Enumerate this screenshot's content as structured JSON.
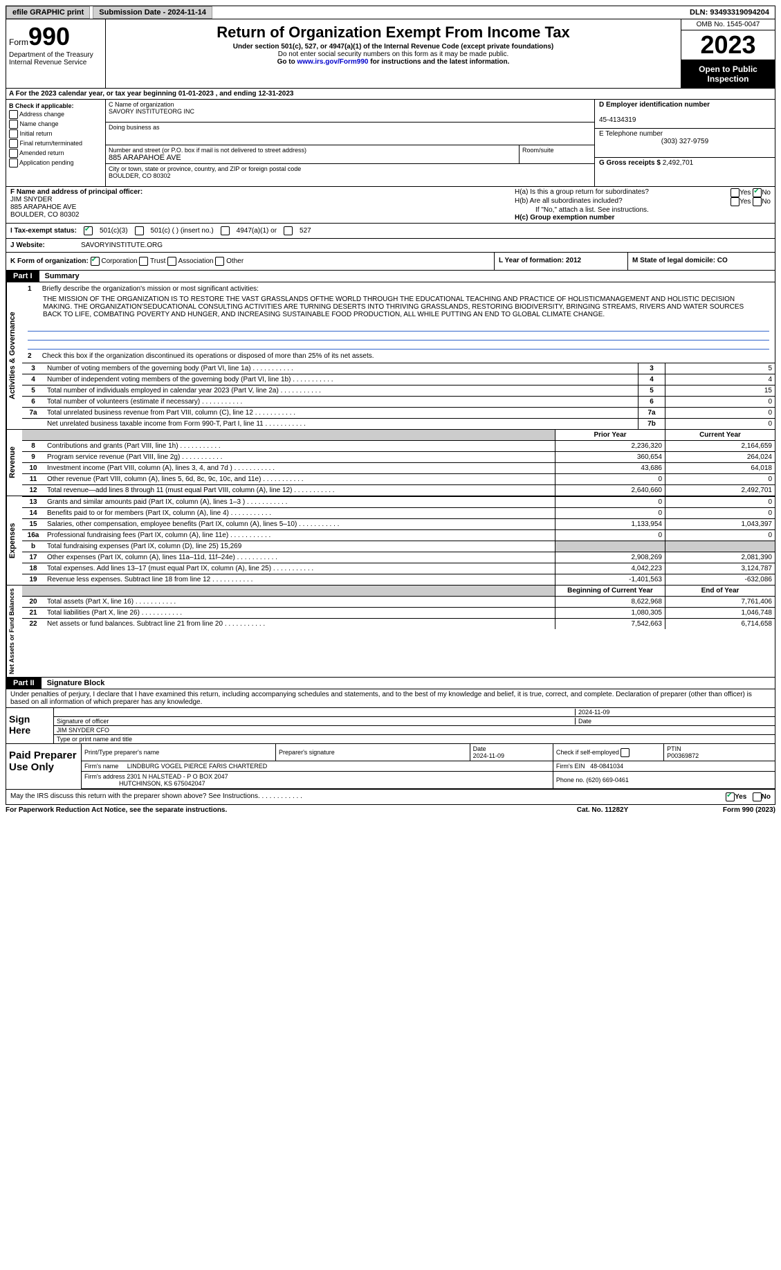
{
  "topbar": {
    "efile": "efile GRAPHIC print",
    "submission": "Submission Date - 2024-11-14",
    "dln": "DLN: 93493319094204"
  },
  "header": {
    "form_label": "Form",
    "form_num": "990",
    "dept": "Department of the Treasury",
    "irs": "Internal Revenue Service",
    "title": "Return of Organization Exempt From Income Tax",
    "sub1": "Under section 501(c), 527, or 4947(a)(1) of the Internal Revenue Code (except private foundations)",
    "sub2": "Do not enter social security numbers on this form as it may be made public.",
    "sub3_pre": "Go to ",
    "sub3_link": "www.irs.gov/Form990",
    "sub3_post": " for instructions and the latest information.",
    "omb": "OMB No. 1545-0047",
    "year": "2023",
    "open": "Open to Public Inspection"
  },
  "rowA": "A   For the 2023 calendar year, or tax year beginning 01-01-2023    , and ending 12-31-2023",
  "colB": {
    "title": "B Check if applicable:",
    "opts": [
      "Address change",
      "Name change",
      "Initial return",
      "Final return/terminated",
      "Amended return",
      "Application pending"
    ]
  },
  "colC": {
    "name_lbl": "C Name of organization",
    "name": "SAVORY INSTITUTEORG INC",
    "dba_lbl": "Doing business as",
    "addr_lbl": "Number and street (or P.O. box if mail is not delivered to street address)",
    "addr": "885 ARAPAHOE AVE",
    "room_lbl": "Room/suite",
    "city_lbl": "City or town, state or province, country, and ZIP or foreign postal code",
    "city": "BOULDER, CO  80302"
  },
  "colDE": {
    "d_lbl": "D Employer identification number",
    "d_val": "45-4134319",
    "e_lbl": "E Telephone number",
    "e_val": "(303) 327-9759",
    "g_lbl": "G Gross receipts $",
    "g_val": "2,492,701"
  },
  "rowF": {
    "lbl": "F  Name and address of principal officer:",
    "name": "JIM SNYDER",
    "addr1": "885 ARAPAHOE AVE",
    "addr2": "BOULDER, CO  80302"
  },
  "rowH": {
    "ha": "H(a)  Is this a group return for subordinates?",
    "hb": "H(b)  Are all subordinates included?",
    "hb2": "If \"No,\" attach a list. See instructions.",
    "hc": "H(c)  Group exemption number",
    "yes": "Yes",
    "no": "No"
  },
  "rowI": {
    "lbl": "I    Tax-exempt status:",
    "o1": "501(c)(3)",
    "o2": "501(c) (  ) (insert no.)",
    "o3": "4947(a)(1) or",
    "o4": "527"
  },
  "rowJ": {
    "lbl": "J    Website:",
    "val": "SAVORYINSTITUTE.ORG"
  },
  "rowK": {
    "lbl": "K Form of organization:",
    "o1": "Corporation",
    "o2": "Trust",
    "o3": "Association",
    "o4": "Other",
    "l": "L Year of formation: 2012",
    "m": "M State of legal domicile: CO"
  },
  "part1": {
    "tab": "Part I",
    "title": "Summary",
    "q1": "Briefly describe the organization's mission or most significant activities:",
    "mission": "THE MISSION OF THE ORGANIZATION IS TO RESTORE THE VAST GRASSLANDS OFTHE WORLD THROUGH THE EDUCATIONAL TEACHING AND PRACTICE OF HOLISTICMANAGEMENT AND HOLISTIC DECISION MAKING. THE ORGANIZATION'SEDUCATIONAL CONSULTING ACTIVITIES ARE TURNING DESERTS INTO THRIVING GRASSLANDS, RESTORING BIODIVERSITY, BRINGING STREAMS, RIVERS AND WATER SOURCES BACK TO LIFE, COMBATING POVERTY AND HUNGER, AND INCREASING SUSTAINABLE FOOD PRODUCTION, ALL WHILE PUTTING AN END TO GLOBAL CLIMATE CHANGE.",
    "q2": "Check this box       if the organization discontinued its operations or disposed of more than 25% of its net assets.",
    "lines_act": [
      {
        "n": "3",
        "d": "Number of voting members of the governing body (Part VI, line 1a)",
        "b": "3",
        "v": "5"
      },
      {
        "n": "4",
        "d": "Number of independent voting members of the governing body (Part VI, line 1b)",
        "b": "4",
        "v": "4"
      },
      {
        "n": "5",
        "d": "Total number of individuals employed in calendar year 2023 (Part V, line 2a)",
        "b": "5",
        "v": "15"
      },
      {
        "n": "6",
        "d": "Total number of volunteers (estimate if necessary)",
        "b": "6",
        "v": "0"
      },
      {
        "n": "7a",
        "d": "Total unrelated business revenue from Part VIII, column (C), line 12",
        "b": "7a",
        "v": "0"
      },
      {
        "n": "",
        "d": "Net unrelated business taxable income from Form 990-T, Part I, line 11",
        "b": "7b",
        "v": "0"
      }
    ],
    "prior": "Prior Year",
    "current": "Current Year",
    "rev": [
      {
        "n": "8",
        "d": "Contributions and grants (Part VIII, line 1h)",
        "p": "2,236,320",
        "c": "2,164,659"
      },
      {
        "n": "9",
        "d": "Program service revenue (Part VIII, line 2g)",
        "p": "360,654",
        "c": "264,024"
      },
      {
        "n": "10",
        "d": "Investment income (Part VIII, column (A), lines 3, 4, and 7d )",
        "p": "43,686",
        "c": "64,018"
      },
      {
        "n": "11",
        "d": "Other revenue (Part VIII, column (A), lines 5, 6d, 8c, 9c, 10c, and 11e)",
        "p": "0",
        "c": "0"
      },
      {
        "n": "12",
        "d": "Total revenue—add lines 8 through 11 (must equal Part VIII, column (A), line 12)",
        "p": "2,640,660",
        "c": "2,492,701"
      }
    ],
    "exp": [
      {
        "n": "13",
        "d": "Grants and similar amounts paid (Part IX, column (A), lines 1–3 )",
        "p": "0",
        "c": "0"
      },
      {
        "n": "14",
        "d": "Benefits paid to or for members (Part IX, column (A), line 4)",
        "p": "0",
        "c": "0"
      },
      {
        "n": "15",
        "d": "Salaries, other compensation, employee benefits (Part IX, column (A), lines 5–10)",
        "p": "1,133,954",
        "c": "1,043,397"
      },
      {
        "n": "16a",
        "d": "Professional fundraising fees (Part IX, column (A), line 11e)",
        "p": "0",
        "c": "0"
      },
      {
        "n": "b",
        "d": "Total fundraising expenses (Part IX, column (D), line 25) 15,269",
        "p": "",
        "c": "",
        "shade": true
      },
      {
        "n": "17",
        "d": "Other expenses (Part IX, column (A), lines 11a–11d, 11f–24e)",
        "p": "2,908,269",
        "c": "2,081,390"
      },
      {
        "n": "18",
        "d": "Total expenses. Add lines 13–17 (must equal Part IX, column (A), line 25)",
        "p": "4,042,223",
        "c": "3,124,787"
      },
      {
        "n": "19",
        "d": "Revenue less expenses. Subtract line 18 from line 12",
        "p": "-1,401,563",
        "c": "-632,086"
      }
    ],
    "begin": "Beginning of Current Year",
    "end": "End of Year",
    "net": [
      {
        "n": "20",
        "d": "Total assets (Part X, line 16)",
        "p": "8,622,968",
        "c": "7,761,406"
      },
      {
        "n": "21",
        "d": "Total liabilities (Part X, line 26)",
        "p": "1,080,305",
        "c": "1,046,748"
      },
      {
        "n": "22",
        "d": "Net assets or fund balances. Subtract line 21 from line 20",
        "p": "7,542,663",
        "c": "6,714,658"
      }
    ],
    "vlabels": {
      "act": "Activities & Governance",
      "rev": "Revenue",
      "exp": "Expenses",
      "net": "Net Assets or Fund Balances"
    }
  },
  "part2": {
    "tab": "Part II",
    "title": "Signature Block",
    "decl": "Under penalties of perjury, I declare that I have examined this return, including accompanying schedules and statements, and to the best of my knowledge and belief, it is true, correct, and complete. Declaration of preparer (other than officer) is based on all information of which preparer has any knowledge.",
    "date1": "2024-11-09",
    "sig_lbl": "Signature of officer",
    "date_lbl": "Date",
    "officer": "JIM SNYDER  CFO",
    "type_lbl": "Type or print name and title",
    "sign_here": "Sign Here",
    "paid": "Paid Preparer Use Only",
    "pt_name_lbl": "Print/Type preparer's name",
    "pt_sig_lbl": "Preparer's signature",
    "pt_date_lbl": "Date",
    "pt_date": "2024-11-09",
    "pt_check": "Check        if self-employed",
    "ptin_lbl": "PTIN",
    "ptin": "P00369872",
    "firm_name_lbl": "Firm's name",
    "firm_name": "LINDBURG VOGEL PIERCE FARIS CHARTERED",
    "firm_ein_lbl": "Firm's EIN",
    "firm_ein": "48-0841034",
    "firm_addr_lbl": "Firm's address",
    "firm_addr1": "2301 N HALSTEAD - P O BOX 2047",
    "firm_addr2": "HUTCHINSON, KS  675042047",
    "phone_lbl": "Phone no.",
    "phone": "(620) 669-0461",
    "discuss": "May the IRS discuss this return with the preparer shown above? See Instructions."
  },
  "footer": {
    "left": "For Paperwork Reduction Act Notice, see the separate instructions.",
    "center": "Cat. No. 11282Y",
    "right": "Form 990 (2023)"
  }
}
